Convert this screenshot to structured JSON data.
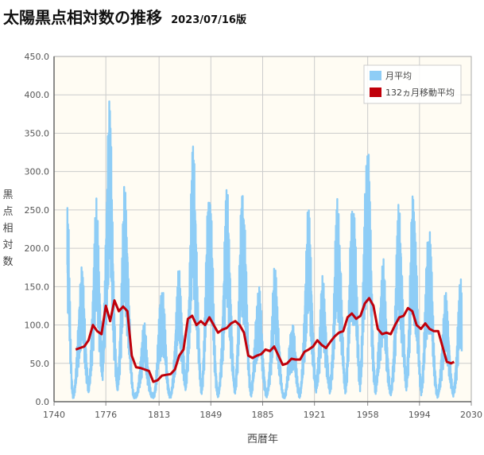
{
  "header": {
    "title": "太陽黒点相対数の推移",
    "version": "2023/07/16版"
  },
  "colors": {
    "monthly": "#8ecdf6",
    "smoothed": "#c0000a",
    "plot_bg": "#fffcf3",
    "grid": "#cccccc"
  },
  "chart_data": {
    "type": "line",
    "xlabel": "西暦年",
    "ylabel": "黒点相対数",
    "xlim": [
      1740,
      2030
    ],
    "ylim": [
      0,
      450
    ],
    "xticks": [
      "1740",
      "1776",
      "1813",
      "1849",
      "1885",
      "1921",
      "1958",
      "1994",
      "2030"
    ],
    "yticks": [
      "0.0",
      "50.0",
      "100.0",
      "150.0",
      "200.0",
      "250.0",
      "300.0",
      "350.0",
      "400.0",
      "450.0"
    ],
    "grid": true,
    "legend_position": "top-right",
    "series": [
      {
        "name": "月平均",
        "kind": "monthly-band",
        "cycles": [
          {
            "min_year": 1749,
            "max_year": 1750,
            "peak": 265
          },
          {
            "min_year": 1755,
            "max_year": 1761,
            "peak": 180
          },
          {
            "min_year": 1766,
            "max_year": 1769,
            "peak": 265
          },
          {
            "min_year": 1775,
            "max_year": 1778,
            "peak": 400
          },
          {
            "min_year": 1784,
            "max_year": 1788,
            "peak": 290
          },
          {
            "min_year": 1798,
            "max_year": 1805,
            "peak": 105
          },
          {
            "min_year": 1810,
            "max_year": 1816,
            "peak": 160
          },
          {
            "min_year": 1823,
            "max_year": 1830,
            "peak": 175
          },
          {
            "min_year": 1833,
            "max_year": 1837,
            "peak": 345
          },
          {
            "min_year": 1843,
            "max_year": 1848,
            "peak": 300
          },
          {
            "min_year": 1856,
            "max_year": 1860,
            "peak": 285
          },
          {
            "min_year": 1867,
            "max_year": 1870,
            "peak": 295
          },
          {
            "min_year": 1878,
            "max_year": 1884,
            "peak": 160
          },
          {
            "min_year": 1889,
            "max_year": 1893,
            "peak": 180
          },
          {
            "min_year": 1901,
            "max_year": 1906,
            "peak": 110
          },
          {
            "min_year": 1913,
            "max_year": 1917,
            "peak": 260
          },
          {
            "min_year": 1923,
            "max_year": 1928,
            "peak": 165
          },
          {
            "min_year": 1933,
            "max_year": 1937,
            "peak": 275
          },
          {
            "min_year": 1944,
            "max_year": 1947,
            "peak": 285
          },
          {
            "min_year": 1954,
            "max_year": 1958,
            "peak": 360
          },
          {
            "min_year": 1964,
            "max_year": 1969,
            "peak": 190
          },
          {
            "min_year": 1976,
            "max_year": 1979,
            "peak": 265
          },
          {
            "min_year": 1986,
            "max_year": 1989,
            "peak": 285
          },
          {
            "min_year": 1996,
            "max_year": 2000,
            "peak": 245
          },
          {
            "min_year": 2008,
            "max_year": 2014,
            "peak": 145
          },
          {
            "min_year": 2019,
            "max_year": 2023,
            "peak": 165
          }
        ]
      },
      {
        "name": "132ヵ月移動平均",
        "kind": "line",
        "x": [
          1755,
          1758,
          1761,
          1764,
          1767,
          1770,
          1773,
          1776,
          1779,
          1782,
          1785,
          1788,
          1791,
          1794,
          1797,
          1800,
          1803,
          1806,
          1809,
          1812,
          1815,
          1818,
          1821,
          1824,
          1827,
          1830,
          1833,
          1836,
          1839,
          1842,
          1845,
          1848,
          1851,
          1854,
          1857,
          1860,
          1863,
          1866,
          1869,
          1872,
          1875,
          1878,
          1881,
          1884,
          1887,
          1890,
          1893,
          1896,
          1899,
          1902,
          1905,
          1908,
          1911,
          1914,
          1917,
          1920,
          1923,
          1926,
          1929,
          1932,
          1935,
          1938,
          1941,
          1944,
          1947,
          1950,
          1953,
          1956,
          1959,
          1962,
          1965,
          1968,
          1971,
          1974,
          1977,
          1980,
          1983,
          1986,
          1989,
          1992,
          1995,
          1998,
          2001,
          2004,
          2007,
          2010,
          2013,
          2016,
          2018
        ],
        "y": [
          68,
          70,
          72,
          80,
          100,
          92,
          88,
          125,
          105,
          132,
          118,
          124,
          118,
          60,
          45,
          44,
          42,
          40,
          26,
          28,
          34,
          35,
          36,
          42,
          60,
          68,
          108,
          112,
          100,
          105,
          100,
          110,
          100,
          90,
          94,
          96,
          102,
          105,
          100,
          90,
          60,
          57,
          60,
          62,
          68,
          66,
          72,
          60,
          48,
          50,
          56,
          55,
          55,
          65,
          68,
          72,
          80,
          74,
          70,
          78,
          85,
          90,
          92,
          110,
          115,
          108,
          112,
          128,
          135,
          125,
          95,
          88,
          90,
          88,
          100,
          110,
          112,
          122,
          118,
          100,
          95,
          102,
          95,
          92,
          92,
          72,
          52,
          50,
          52
        ]
      }
    ]
  }
}
